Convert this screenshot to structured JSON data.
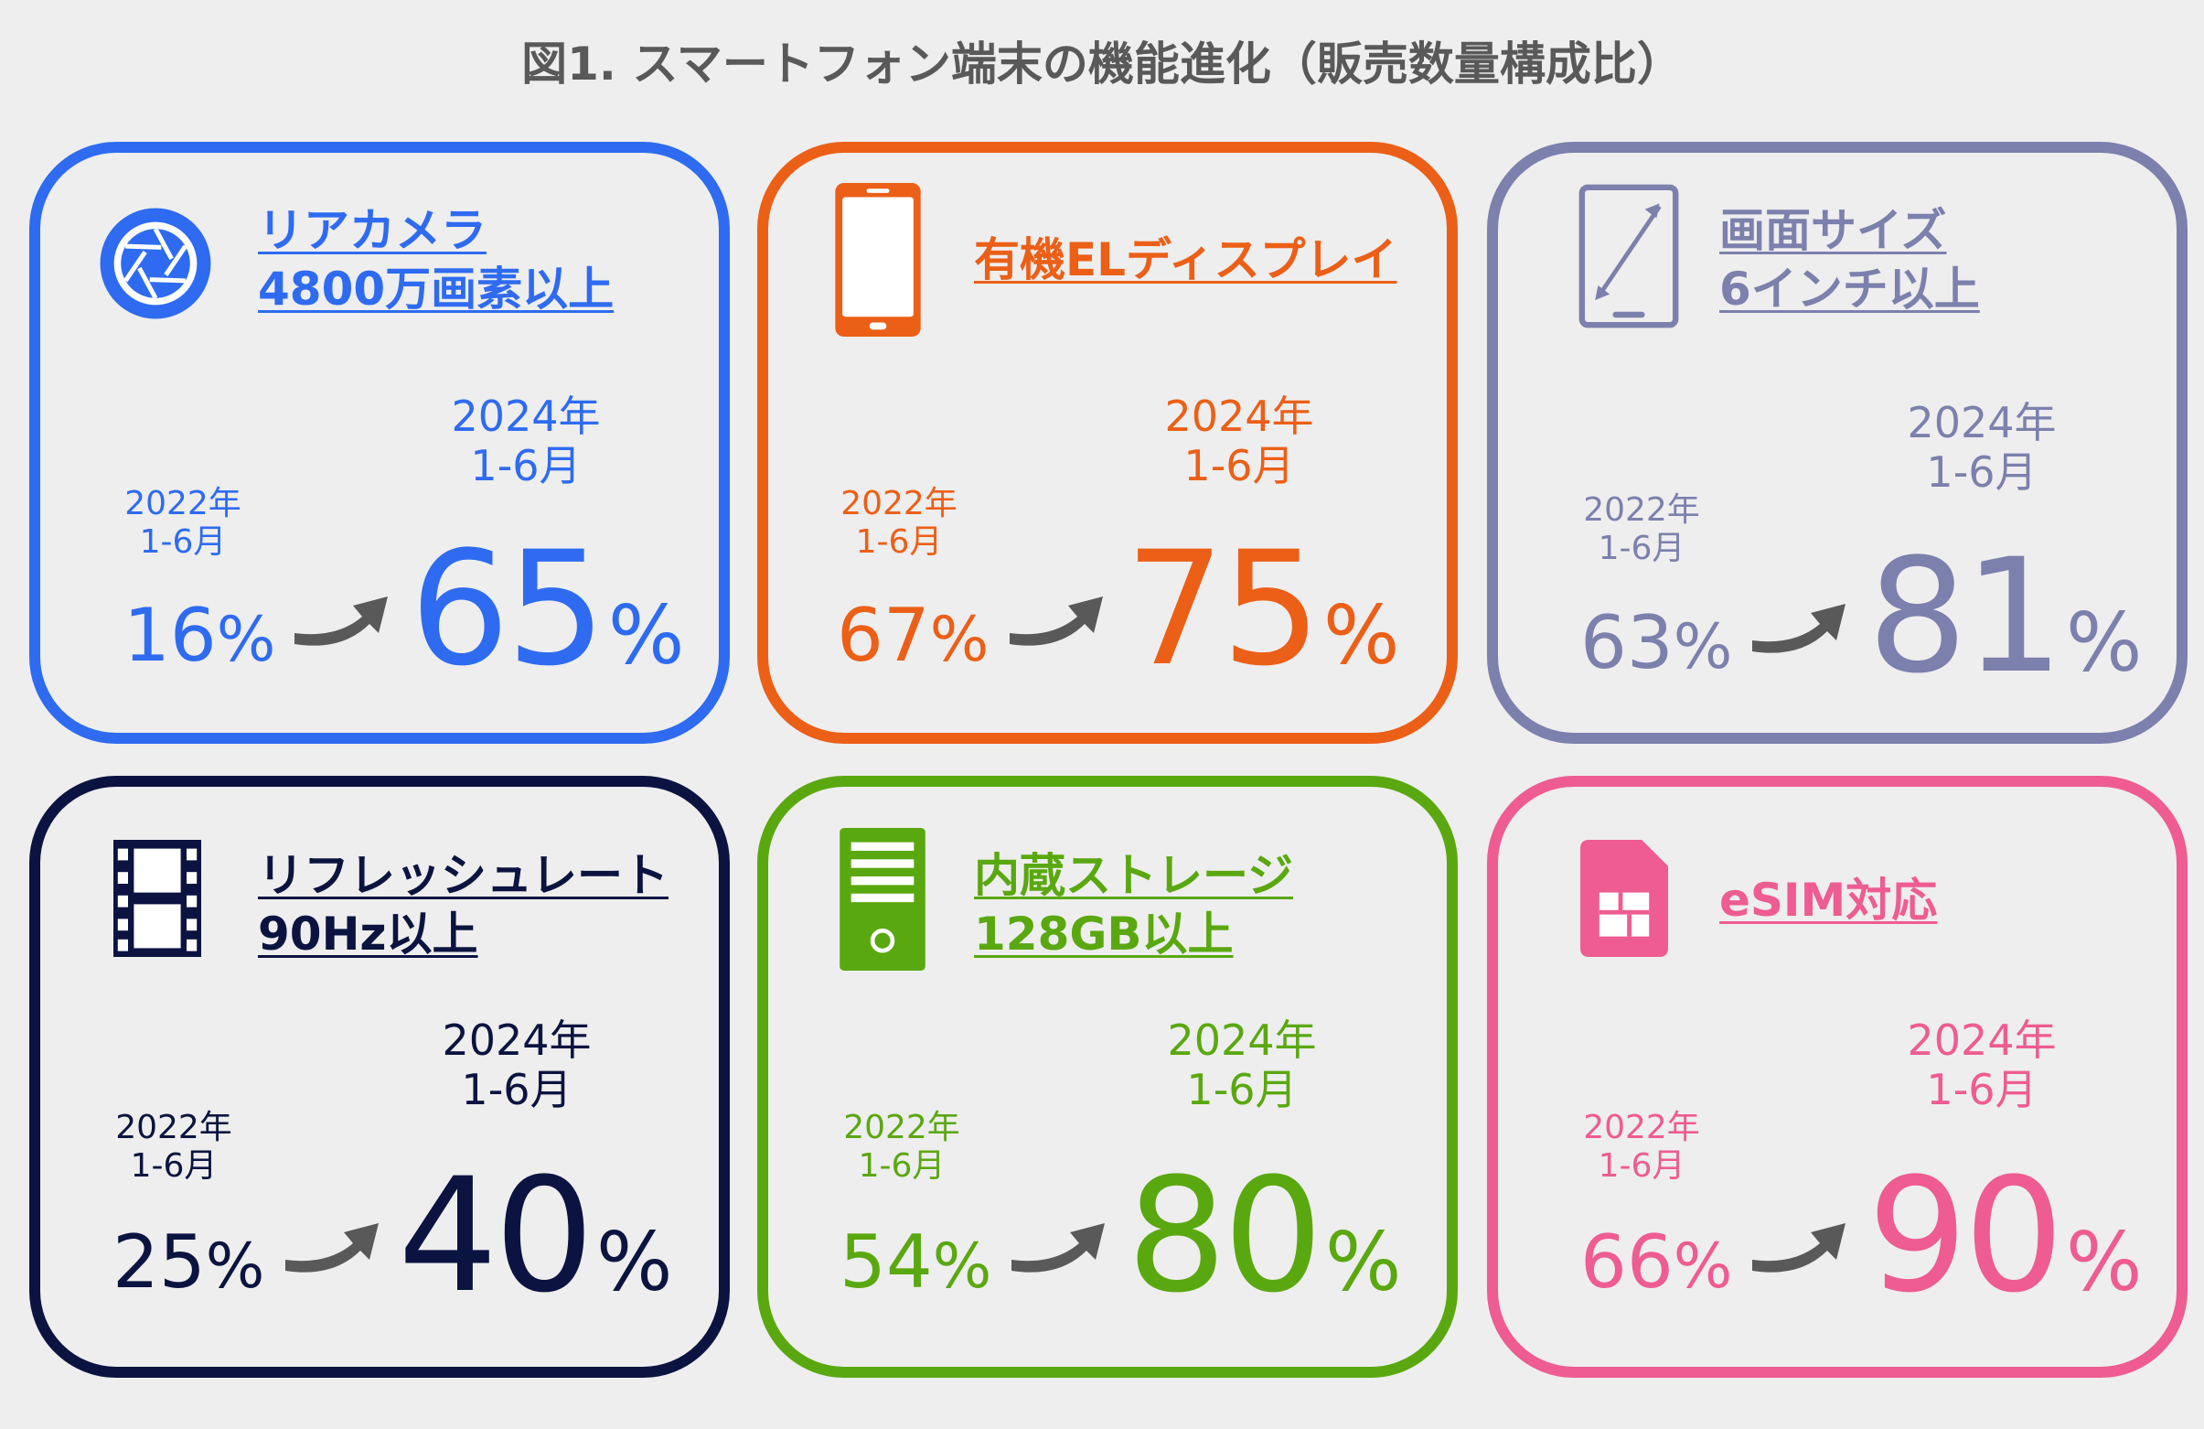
{
  "title": "図1. スマートフォン端末の機能進化（販売数量構成比）",
  "period_old": [
    "2022年",
    "1-6月"
  ],
  "period_new": [
    "2024年",
    "1-6月"
  ],
  "pct_sign": "%",
  "colors": {
    "camera": "#2e6bf0",
    "display": "#ec5f17",
    "screen": "#7c80ad",
    "refresh": "#0b1440",
    "storage": "#5aa80f",
    "esim": "#ee5c91",
    "arrow": "#595959"
  },
  "cards": [
    {
      "id": "camera",
      "icon": "camera-shutter-icon",
      "label_line1": "リアカメラ",
      "label_line2": "4800万画素以上",
      "old": "16",
      "new": "65"
    },
    {
      "id": "display",
      "icon": "smartphone-icon",
      "label_line1": "有機ELディスプレイ",
      "label_line2": "",
      "old": "67",
      "new": "75"
    },
    {
      "id": "screen",
      "icon": "tablet-resize-icon",
      "label_line1": "画面サイズ",
      "label_line2": "6インチ以上",
      "old": "63",
      "new": "81"
    },
    {
      "id": "refresh",
      "icon": "film-strip-icon",
      "label_line1": "リフレッシュレート",
      "label_line2": "90Hz以上",
      "old": "25",
      "new": "40"
    },
    {
      "id": "storage",
      "icon": "server-tower-icon",
      "label_line1": "内蔵ストレージ",
      "label_line2": "128GB以上",
      "old": "54",
      "new": "80"
    },
    {
      "id": "esim",
      "icon": "sim-card-icon",
      "label_line1": "eSIM対応",
      "label_line2": "",
      "old": "66",
      "new": "90"
    }
  ]
}
